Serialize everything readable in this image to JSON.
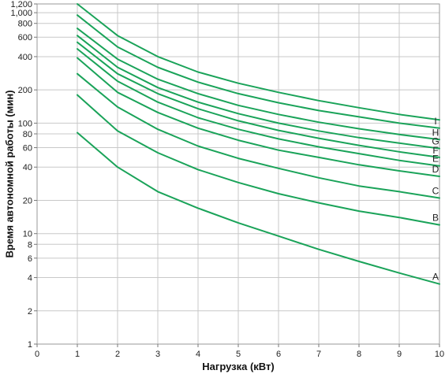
{
  "chart_data": {
    "type": "line",
    "title": "",
    "xlabel": "Нагрузка (кВт)",
    "ylabel": "Время автономной работы (мин)",
    "x_scale": "linear",
    "y_scale": "log",
    "xlim": [
      0,
      10
    ],
    "ylim": [
      1,
      1200
    ],
    "grid": true,
    "legend": "labels at line ends (right)",
    "line_color": "#1aa359",
    "x_ticks": [
      "0",
      "1",
      "2",
      "3",
      "4",
      "5",
      "6",
      "7",
      "8",
      "9",
      "10"
    ],
    "x_tick_values": [
      0,
      1,
      2,
      3,
      4,
      5,
      6,
      7,
      8,
      9,
      10
    ],
    "y_ticks": [
      "1",
      "2",
      "4",
      "6",
      "8",
      "10",
      "20",
      "40",
      "60",
      "80",
      "100",
      "200",
      "400",
      "600",
      "800",
      "1,000",
      "1,200"
    ],
    "y_tick_values": [
      1,
      2,
      4,
      6,
      8,
      10,
      20,
      40,
      60,
      80,
      100,
      200,
      400,
      600,
      800,
      1000,
      1200
    ],
    "x": [
      1,
      2,
      3,
      4,
      5,
      6,
      7,
      8,
      9,
      10
    ],
    "series": [
      {
        "name": "A",
        "values": [
          82,
          40,
          24,
          17,
          12.5,
          9.5,
          7.2,
          5.6,
          4.4,
          3.5
        ]
      },
      {
        "name": "B",
        "values": [
          180,
          85,
          54,
          38,
          29,
          23,
          19,
          16,
          14,
          12
        ]
      },
      {
        "name": "C",
        "values": [
          280,
          140,
          88,
          62,
          48,
          39,
          32,
          27,
          24,
          21
        ]
      },
      {
        "name": "D",
        "values": [
          390,
          190,
          125,
          90,
          70,
          57,
          49,
          42,
          37,
          33
        ]
      },
      {
        "name": "E",
        "values": [
          470,
          240,
          155,
          112,
          88,
          72,
          61,
          53,
          46,
          41
        ]
      },
      {
        "name": "F",
        "values": [
          540,
          280,
          185,
          135,
          105,
          86,
          73,
          63,
          55,
          49
        ]
      },
      {
        "name": "G",
        "values": [
          620,
          320,
          210,
          155,
          122,
          100,
          85,
          74,
          66,
          59
        ]
      },
      {
        "name": "H",
        "values": [
          720,
          380,
          250,
          185,
          145,
          120,
          102,
          89,
          79,
          71
        ]
      },
      {
        "name": "I",
        "values": [
          950,
          490,
          320,
          235,
          185,
          153,
          130,
          114,
          100,
          90
        ]
      },
      {
        "name": "",
        "values": [
          1200,
          620,
          400,
          290,
          230,
          190,
          160,
          138,
          120,
          107
        ]
      }
    ]
  }
}
